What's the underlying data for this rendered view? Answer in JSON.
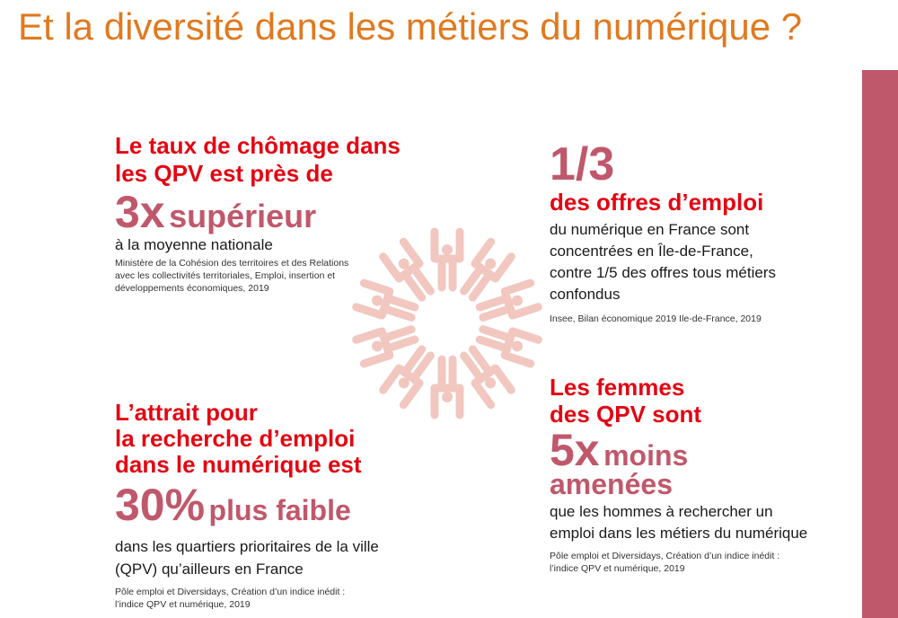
{
  "title": "Et la diversité dans les métiers du numérique ?",
  "colors": {
    "title": "#e07a1f",
    "heading_red": "#e30613",
    "accent_pink": "#c0586c",
    "illustration": "#f1c7c0"
  },
  "illustration": {
    "icon": "people-circle-icon"
  },
  "stat1": {
    "head_line1": "Le taux de chômage dans",
    "head_line2": "les QPV est près de",
    "big_number": "3x",
    "big_word": "supérieur",
    "body": "à la moyenne nationale",
    "source": "Ministère de la Cohésion des territoires et des Relations avec les collectivités territoriales, Emploi, insertion et développements économiques, 2019"
  },
  "stat2": {
    "big_number": "1/3",
    "head": "des offres d’emploi",
    "body": "du numérique en France sont concentrées en Île-de-France, contre 1/5 des offres tous métiers confondus",
    "source": "Insee, Bilan économique 2019 Ile-de-France, 2019"
  },
  "stat3": {
    "head_line1": "L’attrait pour",
    "head_line2": "la recherche d’emploi",
    "head_line3": "dans le numérique est",
    "big_number": "30%",
    "big_word": "plus faible",
    "body": "dans les quartiers prioritaires de la ville (QPV) qu’ailleurs en France",
    "source": "Pôle emploi et Diversidays, Création d’un indice inédit : l’indice QPV et numérique, 2019"
  },
  "stat4": {
    "head_line1": "Les femmes",
    "head_line2": "des QPV sont",
    "big_number": "5x",
    "big_word": "moins",
    "big_word2": "amenées",
    "body": "que les hommes à rechercher un emploi dans les métiers du numérique",
    "source": "Pôle emploi et Diversidays, Création d’un indice inédit : l’indice QPV et numérique, 2019"
  }
}
